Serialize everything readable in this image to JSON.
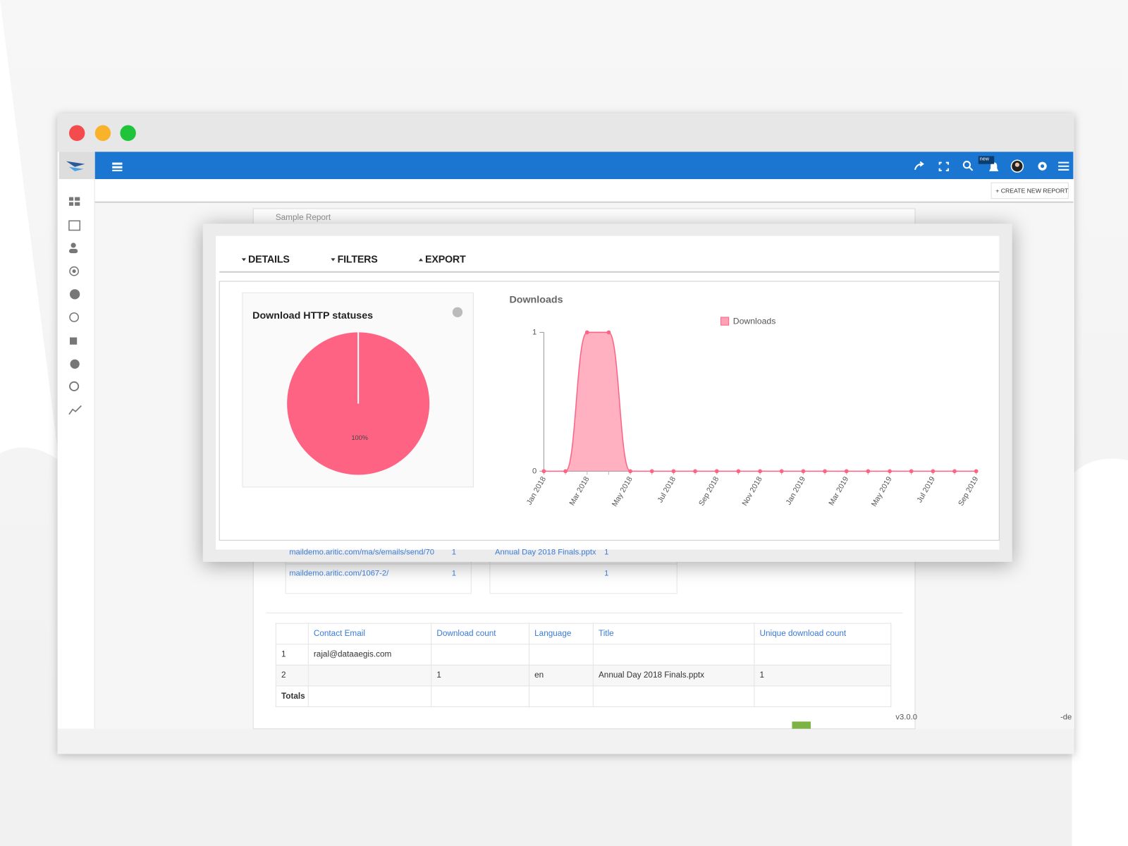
{
  "window": {
    "new_badge": "new",
    "create_button": "+ CREATE NEW REPORT"
  },
  "report": {
    "title": "Sample Report",
    "tabs": [
      "DETAILS",
      "FILTERS",
      "EXPORT"
    ],
    "link_table": {
      "rows": [
        {
          "url": "maildemo.aritic.com/ma/s/emails/send/70",
          "count": 1
        },
        {
          "url": "maildemo.aritic.com/1067-2/",
          "count": 1
        }
      ]
    },
    "title_table": {
      "rows": [
        {
          "title": "Annual Day 2018 Finals.pptx",
          "count": 1
        },
        {
          "count": 1
        }
      ]
    },
    "table": {
      "headers": [
        null,
        "Contact Email",
        "Download count",
        "Language",
        "Title",
        "Unique download count"
      ],
      "rows": [
        [
          1,
          "rajal@dataaegis.com",
          null,
          null,
          null,
          null
        ],
        [
          2,
          null,
          1,
          "en",
          "Annual Day 2018 Finals.pptx",
          1
        ],
        [
          "Totals",
          null,
          null,
          null,
          null,
          null
        ]
      ]
    }
  },
  "footer": {
    "version": "v3.0.0",
    "suffix": "-de"
  },
  "chart_data": [
    {
      "type": "pie",
      "title": "Download HTTP statuses",
      "values": [
        100
      ],
      "value_labels": [
        "100%"
      ],
      "colors": [
        "#ff6384"
      ]
    },
    {
      "type": "area",
      "title": "Downloads",
      "categories": [
        "Jan 2018",
        null,
        "Mar 2018",
        null,
        "May 2018",
        null,
        "Jul 2018",
        null,
        "Sep 2018",
        null,
        "Nov 2018",
        null,
        "Jan 2019",
        null,
        "Mar 2019",
        null,
        "May 2019",
        null,
        "Jul 2019",
        null,
        "Sep 2019"
      ],
      "series": [
        {
          "name": "Downloads",
          "color": "#ff6384",
          "values": [
            0,
            0,
            1,
            1,
            0,
            0,
            0,
            0,
            0,
            0,
            0,
            0,
            0,
            0,
            0,
            0,
            0,
            0,
            0,
            0,
            0
          ]
        }
      ],
      "ylim": [
        0,
        1
      ],
      "yticks": [
        0,
        1
      ],
      "grid": false
    }
  ]
}
